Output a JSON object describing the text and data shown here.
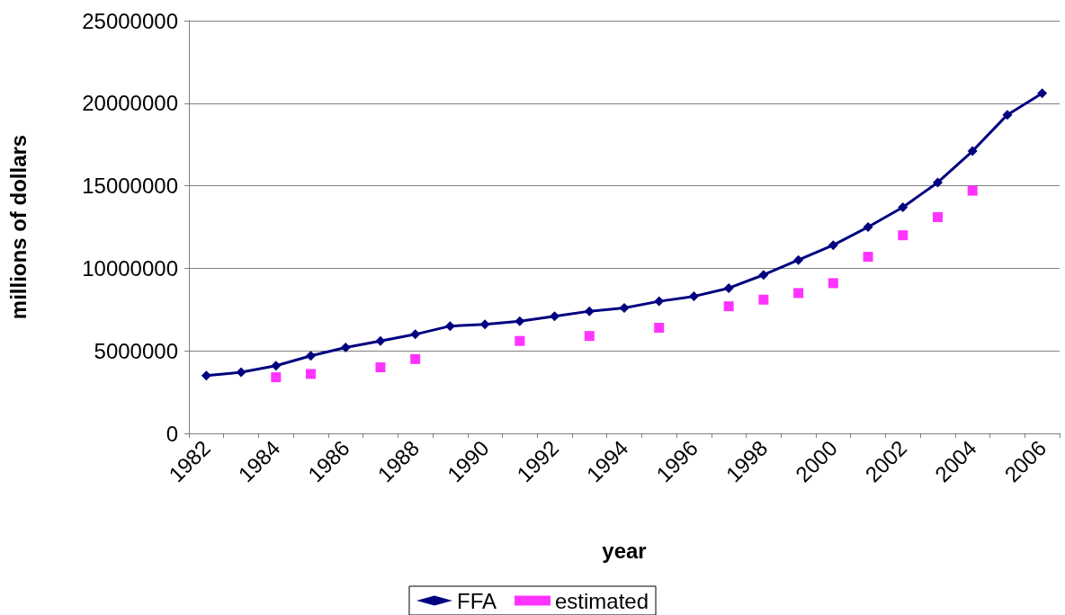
{
  "chart_data": {
    "type": "line",
    "xlabel": "year",
    "ylabel": "millions of dollars",
    "categories": [
      "1982",
      null,
      "1984",
      null,
      "1986",
      null,
      "1988",
      null,
      "1990",
      null,
      "1992",
      null,
      "1994",
      null,
      "1996",
      null,
      "1998",
      null,
      "2000",
      null,
      "2002",
      null,
      "2004",
      null,
      "2006"
    ],
    "series": [
      {
        "name": "FFA",
        "color": "#000080",
        "marker": "diamond",
        "line_style": "solid",
        "values": [
          3500000,
          3700000,
          4100000,
          4700000,
          5200000,
          5600000,
          6000000,
          6500000,
          6600000,
          6800000,
          7100000,
          7400000,
          7600000,
          8000000,
          8300000,
          8800000,
          9600000,
          10500000,
          11400000,
          12500000,
          13700000,
          15200000,
          17100000,
          19300000,
          20600000
        ]
      },
      {
        "name": "estimated",
        "type": "scatter",
        "color": "#ff00ff",
        "marker": "square",
        "values": [
          null,
          null,
          3400000,
          3600000,
          null,
          4000000,
          4500000,
          null,
          null,
          5600000,
          null,
          5900000,
          null,
          6400000,
          null,
          7700000,
          8100000,
          8500000,
          9100000,
          10700000,
          12000000,
          13100000,
          14700000,
          null,
          null
        ]
      }
    ],
    "ylim": [
      0,
      25000000
    ],
    "yticks": [
      0,
      5000000,
      10000000,
      15000000,
      20000000,
      25000000
    ],
    "grid": "y",
    "legend": "bottom"
  }
}
